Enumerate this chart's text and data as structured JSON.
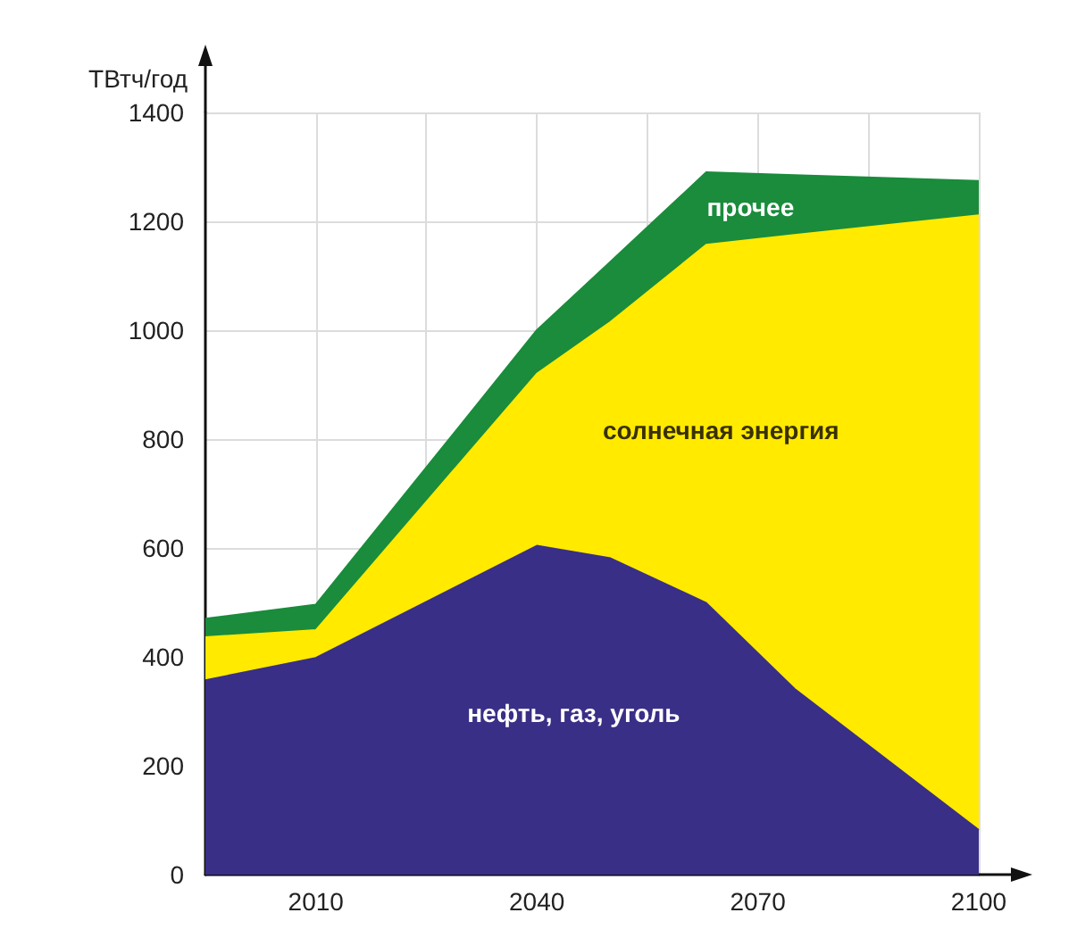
{
  "chart_data": {
    "type": "area",
    "stacked": true,
    "ylabel": "ТВтч/год",
    "x": [
      1995,
      2010,
      2040,
      2050,
      2063,
      2075,
      2100
    ],
    "series": [
      {
        "name": "нефть, газ, уголь",
        "color": "#3a2f87",
        "values": [
          357,
          398,
          604,
          581,
          499,
          341,
          82
        ]
      },
      {
        "name": "солнечная энергия",
        "color": "#ffea00",
        "values": [
          79,
          51,
          316,
          434,
          658,
          834,
          1129
        ]
      },
      {
        "name": "прочее",
        "color": "#1a8c3c",
        "values": [
          34,
          47,
          80,
          111,
          133,
          110,
          63
        ]
      }
    ],
    "xlim": [
      1995,
      2100
    ],
    "xticks": [
      2010,
      {
        "value": 2025,
        "label": null
      },
      2040,
      {
        "value": 2055,
        "label": null
      },
      2070,
      {
        "value": 2085,
        "label": null
      },
      2100
    ],
    "ylim": [
      0,
      1400
    ],
    "yticks": [
      0,
      200,
      400,
      600,
      800,
      1000,
      1200,
      1400
    ],
    "grid": true,
    "legend": false,
    "marker": "none",
    "line_style": "solid"
  }
}
